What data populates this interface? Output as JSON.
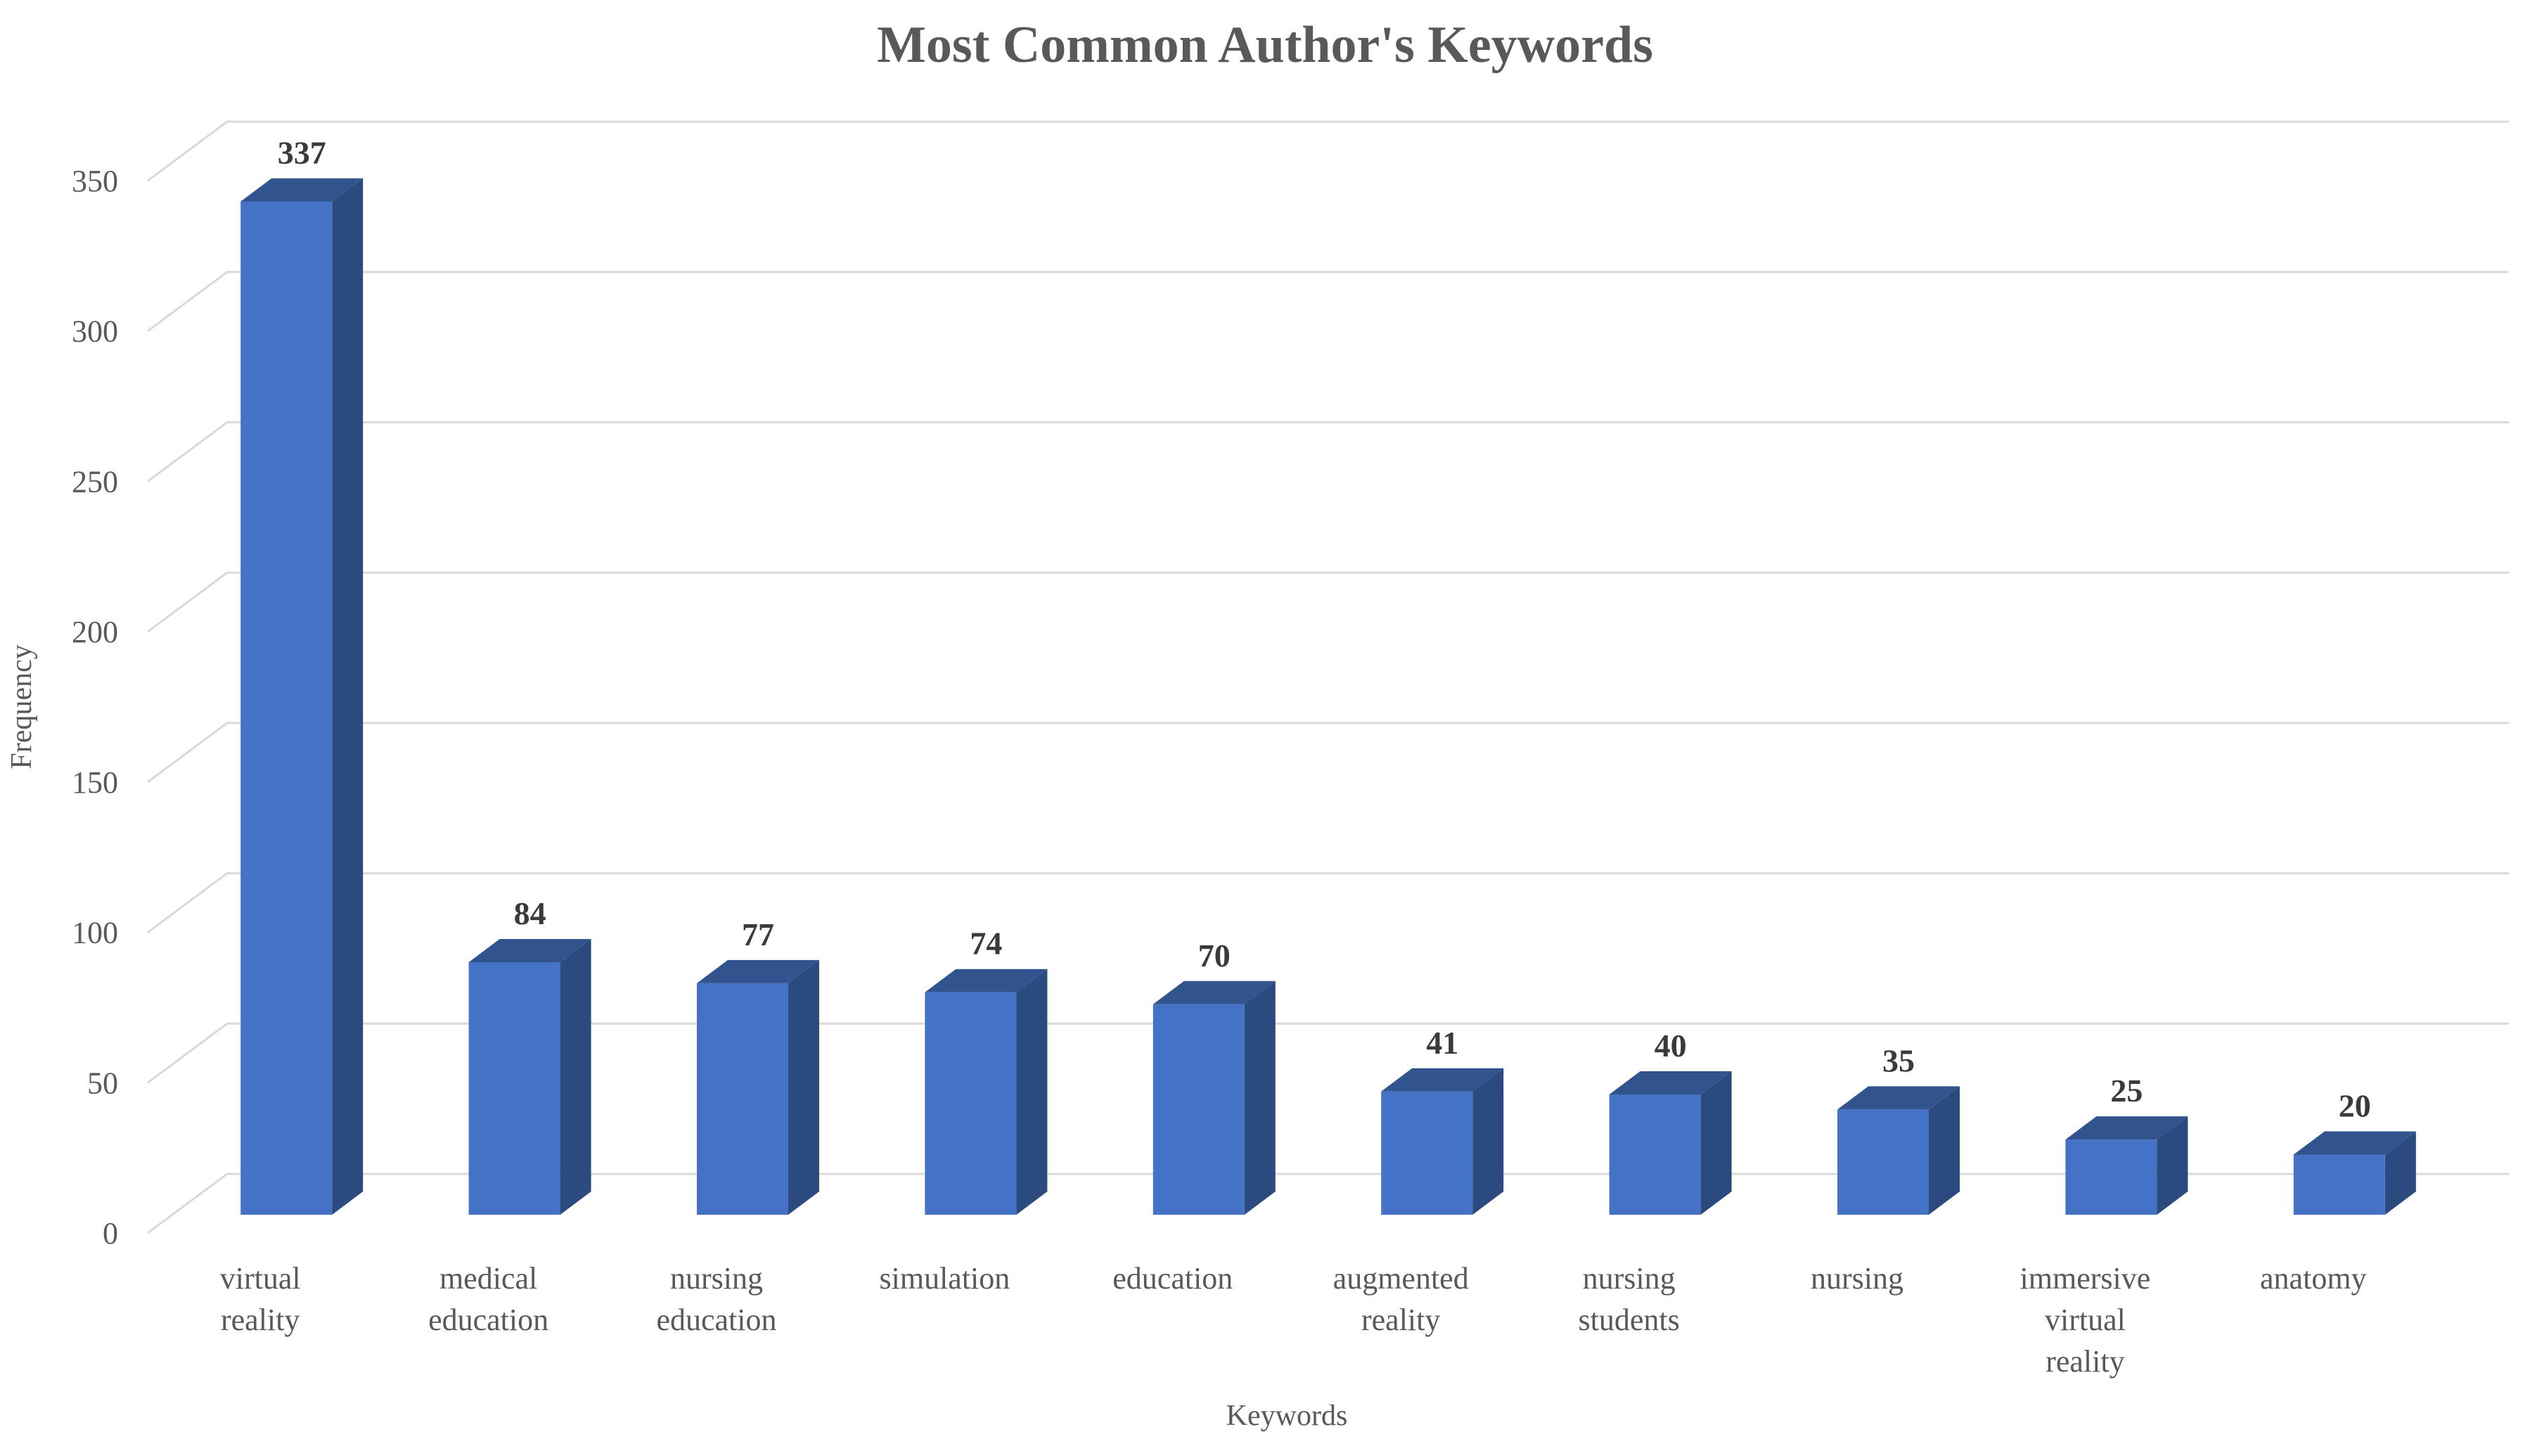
{
  "title": "Most Common Author's Keywords",
  "chart_data": {
    "type": "bar",
    "subtype": "3d-column",
    "title": "Most Common Author's Keywords",
    "xlabel": "Keywords",
    "ylabel": "Frequency",
    "categories": [
      "virtual reality",
      "medical education",
      "nursing education",
      "simulation",
      "education",
      "augmented reality",
      "nursing students",
      "nursing",
      "immersive virtual reality",
      "anatomy"
    ],
    "category_lines": [
      [
        "virtual",
        "reality"
      ],
      [
        "medical",
        "education"
      ],
      [
        "nursing",
        "education"
      ],
      [
        "simulation"
      ],
      [
        "education"
      ],
      [
        "augmented",
        "reality"
      ],
      [
        "nursing",
        "students"
      ],
      [
        "nursing"
      ],
      [
        "immersive",
        "virtual",
        "reality"
      ],
      [
        "anatomy"
      ]
    ],
    "values": [
      337,
      84,
      77,
      74,
      70,
      41,
      40,
      35,
      25,
      20
    ],
    "data_labels": [
      "337",
      "84",
      "77",
      "74",
      "70",
      "41",
      "40",
      "35",
      "25",
      "20"
    ],
    "yticks": [
      0,
      50,
      100,
      150,
      200,
      250,
      300,
      350
    ],
    "ylim": [
      0,
      350
    ],
    "grid": true,
    "legend": false,
    "colors": {
      "bar_front": "#4472C4",
      "bar_top": "#31548E",
      "bar_side": "#2B4B7F",
      "gridline": "#D9D9D9",
      "axis_text": "#595959",
      "category_text": "#595959",
      "data_label_text": "#3A3A3A",
      "title_text": "#595959",
      "background": "#FFFFFF"
    }
  }
}
